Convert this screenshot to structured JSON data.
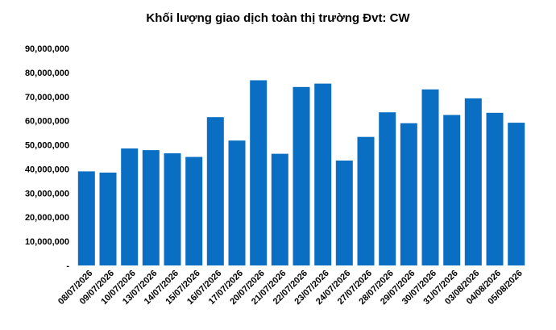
{
  "chart_data": {
    "type": "bar",
    "title": "Khối lượng giao dịch toàn thị trường Đvt: CW",
    "xlabel": "",
    "ylabel": "",
    "ylim": [
      0,
      90000000
    ],
    "ytick_labels": [
      "-",
      "10,000,000",
      "20,000,000",
      "30,000,000",
      "40,000,000",
      "50,000,000",
      "60,000,000",
      "70,000,000",
      "80,000,000",
      "90,000,000"
    ],
    "yticks": [
      0,
      10000000,
      20000000,
      30000000,
      40000000,
      50000000,
      60000000,
      70000000,
      80000000,
      90000000
    ],
    "categories": [
      "08/07/2026",
      "09/07/2026",
      "10/07/2026",
      "13/07/2026",
      "14/07/2026",
      "15/07/2026",
      "16/07/2026",
      "17/07/2026",
      "20/07/2026",
      "21/07/2026",
      "22/07/2026",
      "23/07/2026",
      "24/07/2026",
      "27/07/2026",
      "28/07/2026",
      "29/07/2026",
      "30/07/2026",
      "31/07/2026",
      "03/08/2026",
      "04/08/2026",
      "05/08/2026"
    ],
    "values": [
      39000000,
      38500000,
      48500000,
      47800000,
      46500000,
      45000000,
      61500000,
      51800000,
      76800000,
      46300000,
      74000000,
      75400000,
      43500000,
      53300000,
      63500000,
      59000000,
      73000000,
      62400000,
      69300000,
      63300000,
      59200000
    ],
    "bar_color": "#0a6fc2",
    "grid": false,
    "legend": "none"
  }
}
